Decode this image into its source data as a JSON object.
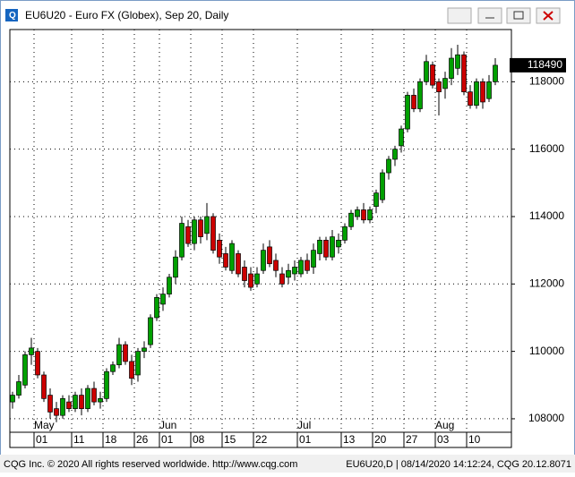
{
  "window_title": "EU6U20 - Euro FX (Globex), Sep 20, Daily",
  "footer_left": "CQG Inc. © 2020 All rights reserved worldwide. http://www.cqg.com",
  "footer_right": "EU6U20,D | 08/14/2020 14:12:24, CQG 20.12.8071",
  "chart_data": {
    "type": "candlestick",
    "up_color": "#00a000",
    "down_color": "#cc0000",
    "last_price": 118490,
    "ylim": [
      107600,
      119550
    ],
    "yticks": [
      108000,
      110000,
      112000,
      114000,
      116000,
      118000
    ],
    "grid": true,
    "months": [
      {
        "value": 4,
        "label": "May"
      },
      {
        "value": 24,
        "label": "Jun"
      },
      {
        "value": 46,
        "label": "Jul"
      },
      {
        "value": 68,
        "label": "Aug"
      }
    ],
    "categories": [
      null,
      null,
      null,
      null,
      "01",
      null,
      null,
      null,
      null,
      null,
      "11",
      null,
      null,
      null,
      null,
      "18",
      null,
      null,
      null,
      null,
      "26",
      null,
      null,
      null,
      "01",
      null,
      null,
      null,
      null,
      "08",
      null,
      null,
      null,
      null,
      "15",
      null,
      null,
      null,
      null,
      "22",
      null,
      null,
      null,
      null,
      null,
      null,
      "01",
      null,
      null,
      null,
      null,
      null,
      null,
      "13",
      null,
      null,
      null,
      null,
      "20",
      null,
      null,
      null,
      null,
      "27",
      null,
      null,
      null,
      null,
      "03",
      null,
      null,
      null,
      null,
      "10",
      null,
      null,
      null,
      null
    ],
    "ohlc": [
      [
        108500,
        108800,
        108300,
        108700
      ],
      [
        108700,
        109300,
        108600,
        109100
      ],
      [
        109000,
        110000,
        108900,
        109900
      ],
      [
        109900,
        110400,
        109600,
        110100
      ],
      [
        110000,
        110100,
        109200,
        109300
      ],
      [
        109300,
        109400,
        108500,
        108600
      ],
      [
        108700,
        108900,
        108000,
        108200
      ],
      [
        108300,
        108500,
        107900,
        108100
      ],
      [
        108100,
        108700,
        108000,
        108600
      ],
      [
        108500,
        108700,
        108200,
        108300
      ],
      [
        108300,
        108800,
        108200,
        108700
      ],
      [
        108700,
        108900,
        108100,
        108300
      ],
      [
        108300,
        109000,
        108200,
        108900
      ],
      [
        108900,
        109100,
        108400,
        108500
      ],
      [
        108500,
        108800,
        108300,
        108600
      ],
      [
        108600,
        109500,
        108500,
        109400
      ],
      [
        109400,
        109700,
        109300,
        109600
      ],
      [
        109600,
        110400,
        109500,
        110200
      ],
      [
        110200,
        110300,
        109600,
        109700
      ],
      [
        109700,
        109900,
        109000,
        109200
      ],
      [
        109300,
        110100,
        109100,
        110000
      ],
      [
        110000,
        110300,
        109800,
        110100
      ],
      [
        110200,
        111100,
        110100,
        111000
      ],
      [
        111000,
        111700,
        110900,
        111600
      ],
      [
        111400,
        111900,
        111200,
        111700
      ],
      [
        111700,
        112300,
        111600,
        112200
      ],
      [
        112200,
        113000,
        112000,
        112800
      ],
      [
        112800,
        114000,
        112700,
        113800
      ],
      [
        113700,
        113900,
        113100,
        113200
      ],
      [
        113200,
        114000,
        113000,
        113900
      ],
      [
        113900,
        114000,
        113200,
        113400
      ],
      [
        113500,
        114400,
        113300,
        114000
      ],
      [
        114000,
        114100,
        112900,
        113000
      ],
      [
        113300,
        113500,
        112600,
        112800
      ],
      [
        112900,
        113100,
        112400,
        112500
      ],
      [
        112400,
        113300,
        112300,
        113200
      ],
      [
        112900,
        113000,
        112200,
        112300
      ],
      [
        112500,
        112700,
        111900,
        112100
      ],
      [
        112300,
        112500,
        111800,
        111900
      ],
      [
        112000,
        112500,
        111900,
        112300
      ],
      [
        112400,
        113200,
        112300,
        113000
      ],
      [
        113100,
        113300,
        112500,
        112600
      ],
      [
        112700,
        112900,
        112200,
        112400
      ],
      [
        112300,
        112500,
        111900,
        112000
      ],
      [
        112200,
        112600,
        112000,
        112400
      ],
      [
        112300,
        112700,
        112100,
        112500
      ],
      [
        112300,
        112800,
        112200,
        112700
      ],
      [
        112700,
        112900,
        112300,
        112400
      ],
      [
        112500,
        113200,
        112300,
        113000
      ],
      [
        112900,
        113400,
        112700,
        113300
      ],
      [
        113300,
        113400,
        112700,
        112800
      ],
      [
        112800,
        113600,
        112700,
        113400
      ],
      [
        113100,
        113500,
        112900,
        113300
      ],
      [
        113300,
        113800,
        113200,
        113700
      ],
      [
        113700,
        114200,
        113600,
        114100
      ],
      [
        114000,
        114300,
        113900,
        114200
      ],
      [
        114200,
        114400,
        113800,
        113900
      ],
      [
        113900,
        114300,
        113800,
        114200
      ],
      [
        114300,
        114800,
        114100,
        114700
      ],
      [
        114500,
        115400,
        114400,
        115300
      ],
      [
        115300,
        115800,
        115100,
        115700
      ],
      [
        115700,
        116100,
        115500,
        116000
      ],
      [
        116100,
        116700,
        115900,
        116600
      ],
      [
        116600,
        117700,
        116500,
        117600
      ],
      [
        117600,
        117800,
        117100,
        117200
      ],
      [
        117200,
        118100,
        117100,
        118000
      ],
      [
        118000,
        118800,
        117900,
        118600
      ],
      [
        118500,
        118600,
        117800,
        117900
      ],
      [
        118000,
        118100,
        117000,
        117700
      ],
      [
        117800,
        118300,
        117500,
        118100
      ],
      [
        118100,
        119000,
        117900,
        118700
      ],
      [
        118400,
        119100,
        118200,
        118800
      ],
      [
        118800,
        118900,
        117600,
        117700
      ],
      [
        117700,
        117900,
        117200,
        117300
      ],
      [
        117300,
        118100,
        117200,
        118000
      ],
      [
        118000,
        118100,
        117200,
        117400
      ],
      [
        117500,
        118200,
        117400,
        118000
      ],
      [
        118000,
        118700,
        117900,
        118490
      ]
    ]
  }
}
